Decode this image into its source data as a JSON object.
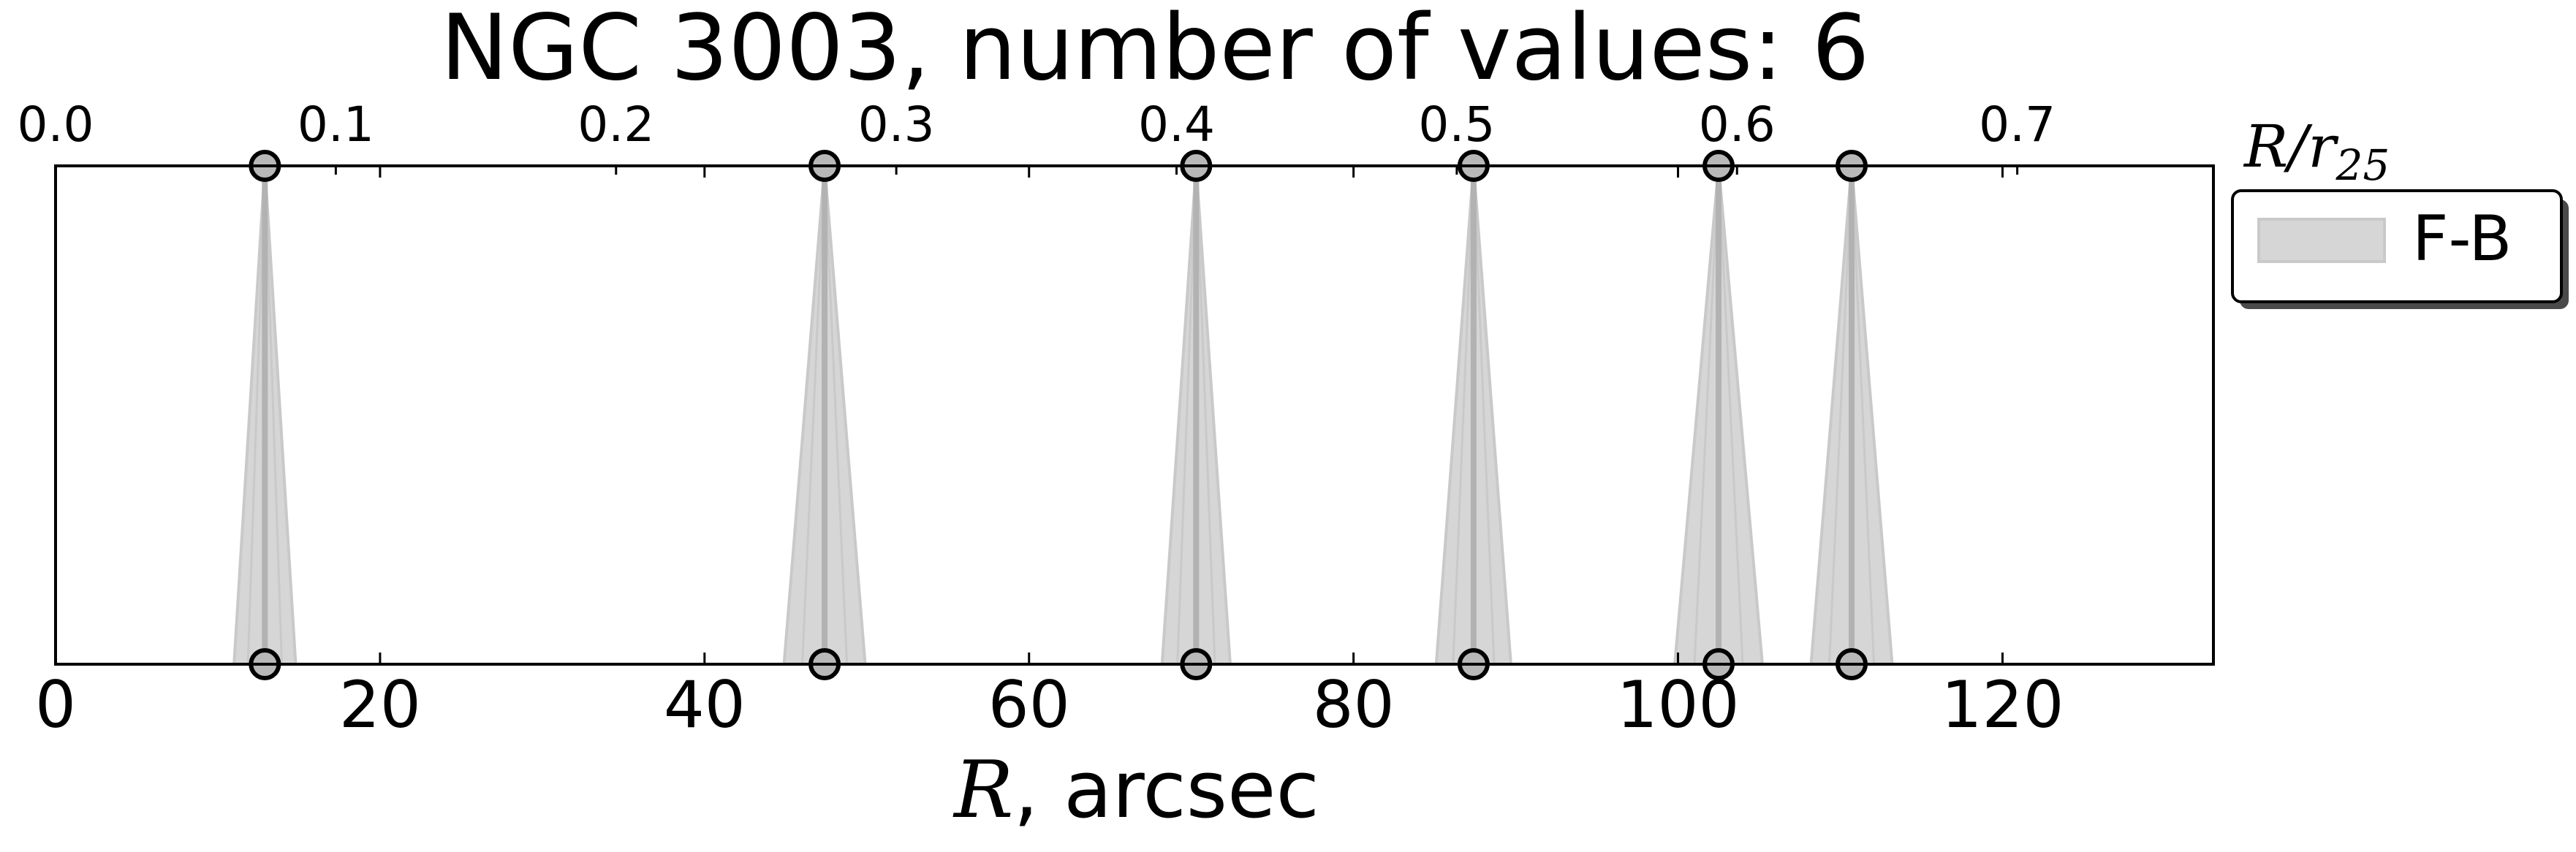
{
  "chart_data": {
    "type": "scatter",
    "title": "NGC 3003, number of values: 6",
    "xlabel_var": "R",
    "xlabel_rest": ", arcsec",
    "top_xlabel_var": "R/r",
    "top_xlabel_sub": "25",
    "xlim": [
      0,
      133
    ],
    "xticks": [
      0,
      20,
      40,
      60,
      80,
      100,
      120
    ],
    "top_xlim": [
      0.0,
      0.77
    ],
    "top_xticks": [
      "0.0",
      "0.1",
      "0.2",
      "0.3",
      "0.4",
      "0.5",
      "0.6",
      "0.7"
    ],
    "grid": false,
    "legend_position": "outside right, top",
    "series": [
      {
        "name": "F-B",
        "points": [
          {
            "x": 12.9,
            "xerr": 1.9
          },
          {
            "x": 47.4,
            "xerr": 2.5
          },
          {
            "x": 70.3,
            "xerr": 2.1
          },
          {
            "x": 87.4,
            "xerr": 2.3
          },
          {
            "x": 102.5,
            "xerr": 2.7
          },
          {
            "x": 110.7,
            "xerr": 2.5
          }
        ]
      }
    ],
    "colors": {
      "fill": "#d6d6d6",
      "fill_edge": "#c9c9c9",
      "center_line": "#b2b2b2",
      "marker": "#b8b8b8",
      "marker_edge": "#000000",
      "axes": "#000000"
    }
  }
}
